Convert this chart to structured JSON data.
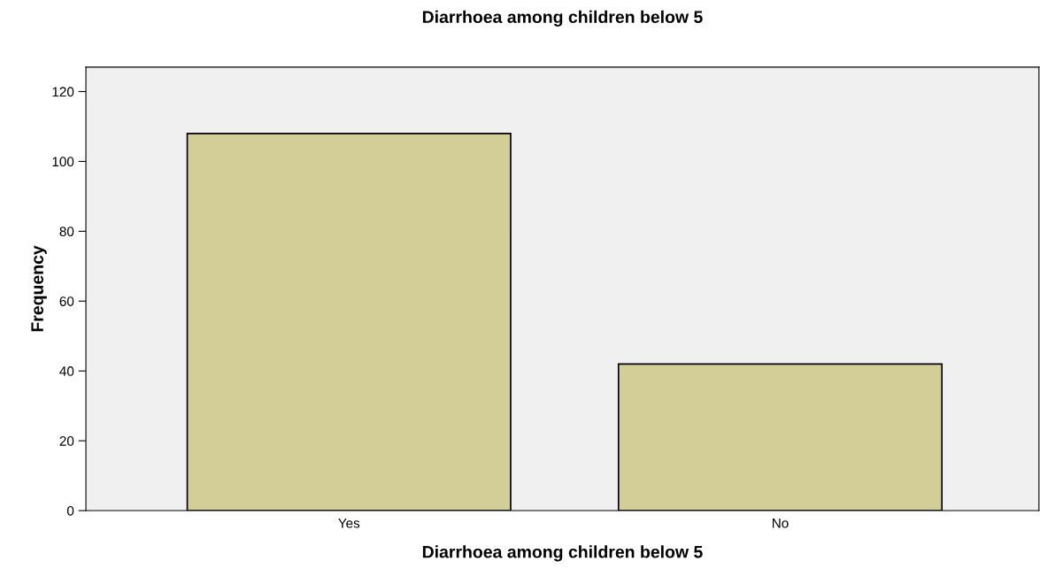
{
  "chart_data": {
    "type": "bar",
    "title": "Diarrhoea among children below 5",
    "xlabel": "Diarrhoea among children below 5",
    "ylabel": "Frequency",
    "categories": [
      "Yes",
      "No"
    ],
    "values": [
      108,
      42
    ],
    "color": "#d3ce97",
    "ylim": [
      0,
      127
    ],
    "yticks": [
      0,
      20,
      40,
      60,
      80,
      100,
      120
    ],
    "grid": false
  }
}
